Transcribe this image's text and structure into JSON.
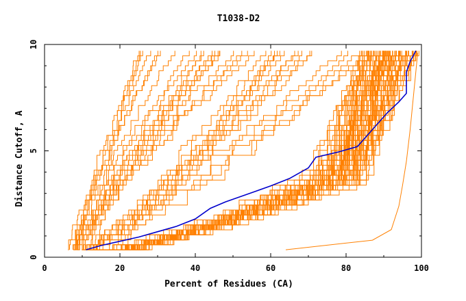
{
  "chart_data": {
    "type": "line",
    "title": "T1038-D2",
    "xlabel": "Percent of Residues (CA)",
    "ylabel": "Distance Cutoff, A",
    "xlim": [
      0,
      100
    ],
    "ylim": [
      0,
      10
    ],
    "x_ticks": [
      0,
      20,
      40,
      60,
      80,
      100
    ],
    "y_ticks": [
      0,
      5,
      10
    ],
    "grid": false,
    "legend": "none",
    "colors": {
      "highlight": "#0000cc",
      "others": "#ff8000",
      "frame": "#000000"
    },
    "highlight_series": {
      "x": [
        11,
        15,
        20,
        25,
        30,
        35,
        40,
        44,
        48,
        52,
        56,
        60,
        65,
        70,
        72,
        78,
        83,
        87,
        91,
        94,
        96,
        96,
        97,
        98.5
      ],
      "y": [
        0.35,
        0.55,
        0.75,
        0.95,
        1.2,
        1.45,
        1.8,
        2.3,
        2.6,
        2.85,
        3.1,
        3.35,
        3.7,
        4.2,
        4.7,
        4.95,
        5.2,
        6.0,
        6.8,
        7.3,
        7.7,
        8.7,
        9.2,
        9.7
      ],
      "style": "step"
    },
    "other_series_groups": [
      {
        "group": "fast",
        "count": 20,
        "x_start": [
          6,
          12
        ],
        "x_end": [
          24,
          58
        ],
        "shape": "steep"
      },
      {
        "group": "mid",
        "count": 16,
        "x_start": [
          9,
          17
        ],
        "x_end": [
          55,
          88
        ],
        "shape": "gradual"
      },
      {
        "group": "main",
        "count": 72,
        "x_start": [
          11,
          20
        ],
        "x_end": [
          84,
          99
        ],
        "shape": "knee"
      },
      {
        "group": "outlier",
        "count": 1,
        "x": [
          64,
          87,
          92,
          94,
          95,
          96,
          97,
          98,
          99
        ],
        "y": [
          0.35,
          0.8,
          1.3,
          2.4,
          3.4,
          4.5,
          6.0,
          7.8,
          9.6
        ]
      }
    ]
  }
}
